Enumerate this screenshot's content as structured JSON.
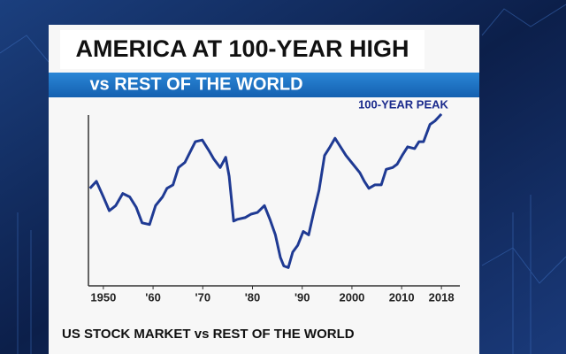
{
  "chart_data": {
    "type": "line",
    "title": "AMERICA AT 100-YEAR HIGH",
    "subtitle": "vs REST OF THE WORLD",
    "annotation": "100-YEAR PEAK",
    "footer": "US STOCK MARKET vs REST OF THE WORLD",
    "xlim": [
      1947,
      2021
    ],
    "xticks": [
      1950,
      {
        "value": 1960,
        "label": "'60"
      },
      {
        "value": 1970,
        "label": "'70"
      },
      {
        "value": 1980,
        "label": "'80"
      },
      {
        "value": 1990,
        "label": "'90"
      },
      2000,
      2010,
      2018
    ],
    "ylim": [
      0,
      100
    ],
    "x": [
      1947.3,
      1948.6,
      1950,
      1951.2,
      1952.5,
      1953.9,
      1955.3,
      1956.6,
      1957.8,
      1959.3,
      1960.5,
      1961.9,
      1962.8,
      1964.0,
      1965.1,
      1966.4,
      1967.8,
      1968.5,
      1969.9,
      1971.2,
      1972.2,
      1973.5,
      1974.6,
      1975.3,
      1976.2,
      1977.0,
      1978.5,
      1979.7,
      1981.0,
      1982.4,
      1983.5,
      1984.6,
      1985.6,
      1986.3,
      1987.2,
      1988.1,
      1989.1,
      1990.2,
      1991.3,
      1992.3,
      1993.4,
      1994.5,
      1995.6,
      1996.6,
      1997.7,
      1998.8,
      2000.2,
      2001.6,
      2002.5,
      2003.4,
      2004.6,
      2005.9,
      2006.9,
      2008.2,
      2009.1,
      2010.1,
      2011.2,
      2012.6,
      2013.5,
      2014.4,
      2015.7,
      2016.7,
      2018
    ],
    "series": [
      {
        "color": "#1f3a93",
        "values": [
          55,
          59,
          50,
          42,
          45,
          52,
          50,
          44,
          35,
          34,
          45,
          50,
          55,
          57,
          67,
          70,
          78,
          82,
          83,
          77,
          72,
          67,
          73,
          62,
          36,
          37,
          38,
          40,
          41,
          45,
          37,
          28,
          15,
          10,
          9,
          18,
          22,
          30,
          28,
          41,
          54,
          74,
          79,
          84,
          79,
          74,
          69,
          64,
          59,
          55,
          57,
          57,
          66,
          67,
          69,
          74,
          79,
          78,
          82,
          82,
          92,
          94,
          98
        ]
      }
    ]
  }
}
